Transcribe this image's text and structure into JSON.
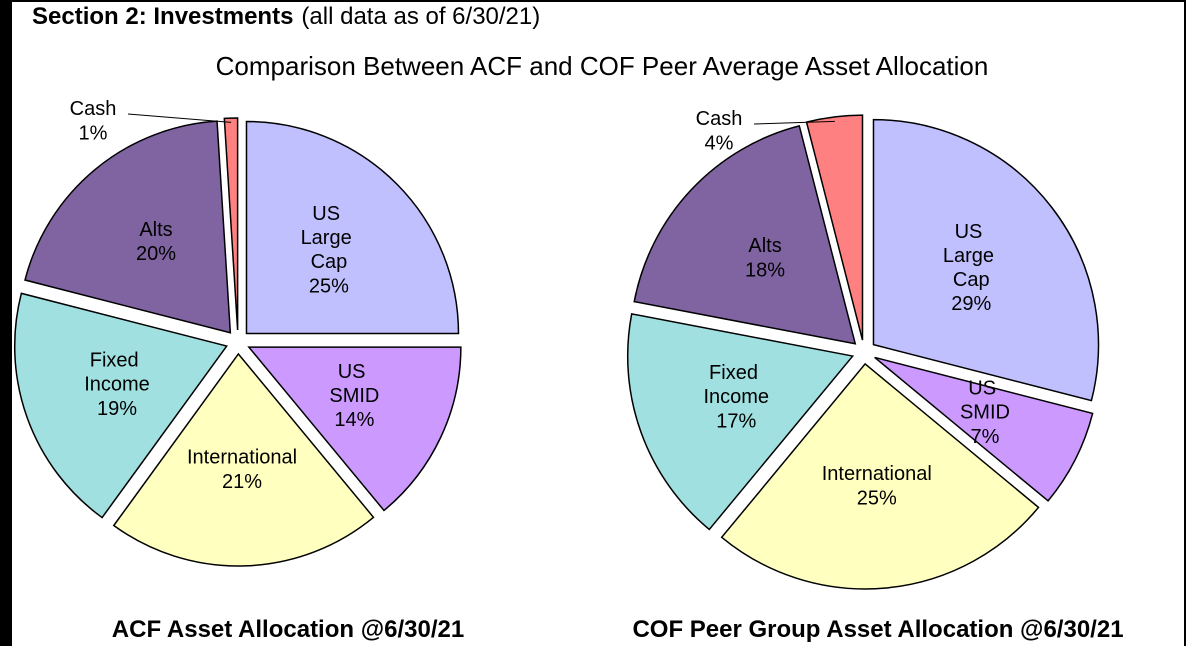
{
  "header": {
    "title": "Section 2: Investments",
    "note": "(all data as of 6/30/21)",
    "subtitle": "Comparison Between ACF and COF Peer Average Asset Allocation"
  },
  "chart_data": [
    {
      "type": "pie",
      "title": "ACF Asset Allocation @6/30/21",
      "categories": [
        "US Large Cap",
        "US SMID",
        "International",
        "Fixed Income",
        "Alts",
        "Cash"
      ],
      "values": [
        25,
        14,
        21,
        19,
        20,
        1
      ],
      "value_labels": [
        "25%",
        "14%",
        "21%",
        "19%",
        "20%",
        "1%"
      ],
      "colors": [
        "#c0c0ff",
        "#cc99ff",
        "#ffffc0",
        "#a0e0e0",
        "#8064a2",
        "#ff8080"
      ]
    },
    {
      "type": "pie",
      "title": "COF Peer Group Asset Allocation @6/30/21",
      "categories": [
        "US Large Cap",
        "US SMID",
        "International",
        "Fixed Income",
        "Alts",
        "Cash"
      ],
      "values": [
        29,
        7,
        25,
        17,
        18,
        4
      ],
      "value_labels": [
        "29%",
        "7%",
        "25%",
        "17%",
        "18%",
        "4%"
      ],
      "colors": [
        "#c0c0ff",
        "#cc99ff",
        "#ffffc0",
        "#a0e0e0",
        "#8064a2",
        "#ff8080"
      ]
    }
  ]
}
